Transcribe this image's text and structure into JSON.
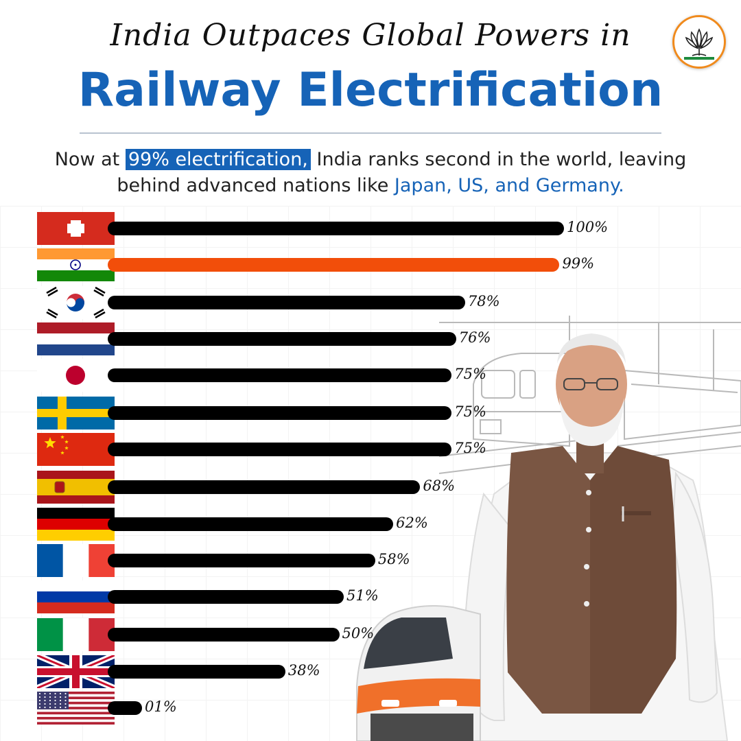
{
  "header": {
    "subtitle": "India Outpaces Global Powers in",
    "title": "Railway Electrification",
    "intro_pre": "Now at ",
    "intro_highlight": "99% electrification,",
    "intro_mid": " India ranks second in the world, leaving behind advanced nations like ",
    "intro_countries": "Japan, US, and Germany."
  },
  "logo": {
    "name": "bjp-lotus-logo",
    "ring_color": "#f08a1c"
  },
  "colors": {
    "bar": "#000000",
    "india_bar": "#f24e0a",
    "title": "#1663b7"
  },
  "chart_data": {
    "type": "bar",
    "orientation": "horizontal",
    "title": "Railway Electrification",
    "categories": [
      "Switzerland",
      "India",
      "South Korea",
      "Netherlands",
      "Japan",
      "Sweden",
      "China",
      "Spain",
      "Germany",
      "France",
      "Russia",
      "Italy",
      "United Kingdom",
      "United States"
    ],
    "flags": [
      "switzerland",
      "india",
      "south-korea",
      "netherlands",
      "japan",
      "sweden",
      "china",
      "spain",
      "germany",
      "france",
      "russia",
      "italy",
      "uk",
      "usa"
    ],
    "values": [
      100,
      99,
      78,
      76,
      75,
      75,
      75,
      68,
      62,
      58,
      51,
      50,
      38,
      1
    ],
    "labels": [
      "100%",
      "99%",
      "78%",
      "76%",
      "75%",
      "75%",
      "75%",
      "68%",
      "62%",
      "58%",
      "51%",
      "50%",
      "38%",
      "01%"
    ],
    "highlight": "India",
    "xlim": [
      0,
      100
    ]
  }
}
